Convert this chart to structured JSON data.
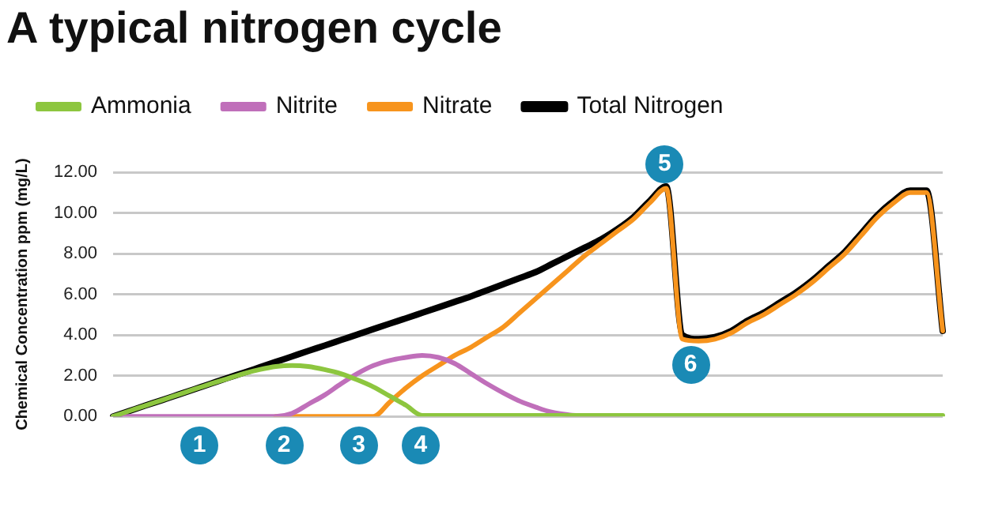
{
  "chart_data": {
    "type": "line",
    "title": "A typical nitrogen cycle",
    "ylabel": "Chemical Concentration ppm (mg/L)",
    "categories": [
      null,
      null,
      null,
      null,
      null,
      null,
      null,
      null,
      null,
      null,
      null,
      null,
      null,
      null,
      null,
      null,
      null,
      null,
      null,
      null,
      null,
      null,
      null,
      null,
      null,
      null,
      null,
      null,
      null,
      null,
      null,
      null,
      null,
      null,
      null,
      null,
      null,
      null,
      null,
      null,
      null,
      null,
      null,
      null,
      null,
      null,
      null,
      null,
      null,
      null,
      null,
      null
    ],
    "series": [
      {
        "name": "Ammonia",
        "color": "#8dc63f",
        "values": [
          0,
          0.27,
          0.54,
          0.8,
          1.07,
          1.34,
          1.6,
          1.85,
          2.1,
          2.3,
          2.45,
          2.5,
          2.45,
          2.3,
          2.1,
          1.8,
          1.45,
          1.0,
          0.55,
          0.05,
          0.05,
          0.05,
          0.05,
          0.05,
          0.05,
          0.05,
          0.05,
          0.05,
          0.05,
          0.05,
          0.05,
          0.05,
          0.05,
          0.05,
          0.05,
          0.05,
          0.05,
          0.05,
          0.05,
          0.05,
          0.05,
          0.05,
          0.05,
          0.05,
          0.05,
          0.05,
          0.05,
          0.05,
          0.05,
          0.05,
          0.05,
          0.05
        ]
      },
      {
        "name": "Nitrite",
        "color": "#c06fba",
        "values": [
          0,
          0,
          0,
          0,
          0,
          0,
          0,
          0,
          0,
          0,
          0,
          0.15,
          0.6,
          1.05,
          1.6,
          2.1,
          2.5,
          2.75,
          2.9,
          3.0,
          2.9,
          2.6,
          2.1,
          1.6,
          1.15,
          0.75,
          0.45,
          0.2,
          0.08,
          0.02,
          0,
          0,
          null,
          null,
          null,
          null,
          null,
          null,
          null,
          null,
          null,
          null,
          null,
          null,
          null,
          null,
          null,
          null,
          null,
          null,
          null,
          null
        ]
      },
      {
        "name": "Nitrate",
        "color": "#f7941d",
        "values": [
          null,
          null,
          null,
          null,
          null,
          null,
          null,
          null,
          null,
          null,
          0,
          0,
          0,
          0,
          0,
          0,
          0,
          0.7,
          1.4,
          2.0,
          2.5,
          3.0,
          3.4,
          3.9,
          4.4,
          5.1,
          5.8,
          6.5,
          7.2,
          7.9,
          8.5,
          9.1,
          9.7,
          10.5,
          11.2,
          3.8,
          3.7,
          3.8,
          4.1,
          4.6,
          5.0,
          5.5,
          6.0,
          6.6,
          7.3,
          8.0,
          8.9,
          9.8,
          10.5,
          11.0,
          11.0,
          4.2
        ]
      },
      {
        "name": "Total Nitrogen",
        "color": "#000000",
        "values": [
          0,
          0.27,
          0.54,
          0.8,
          1.07,
          1.34,
          1.61,
          1.88,
          2.14,
          2.41,
          2.68,
          2.95,
          3.22,
          3.48,
          3.75,
          4.02,
          4.29,
          4.56,
          4.82,
          5.09,
          5.36,
          5.63,
          5.9,
          6.2,
          6.5,
          6.8,
          7.1,
          7.5,
          7.9,
          8.3,
          8.7,
          9.2,
          9.8,
          10.6,
          11.3,
          4.0,
          3.8,
          3.9,
          4.2,
          4.7,
          5.1,
          5.6,
          6.1,
          6.7,
          7.4,
          8.1,
          9.0,
          9.9,
          10.6,
          11.1,
          11.1,
          4.2
        ]
      }
    ],
    "ylim": [
      0,
      12
    ],
    "yticks": [
      {
        "value": 0,
        "label": "0.00"
      },
      {
        "value": 2,
        "label": "2.00"
      },
      {
        "value": 4,
        "label": "4.00"
      },
      {
        "value": 6,
        "label": "6.00"
      },
      {
        "value": 8,
        "label": "8.00"
      },
      {
        "value": 10,
        "label": "10.00"
      },
      {
        "value": 12,
        "label": "12.00"
      }
    ],
    "grid": "y",
    "legend": "top left",
    "marker": "none",
    "line_style": "solid",
    "annotations": [
      "1",
      "2",
      "3",
      "4",
      "5",
      "6"
    ]
  }
}
